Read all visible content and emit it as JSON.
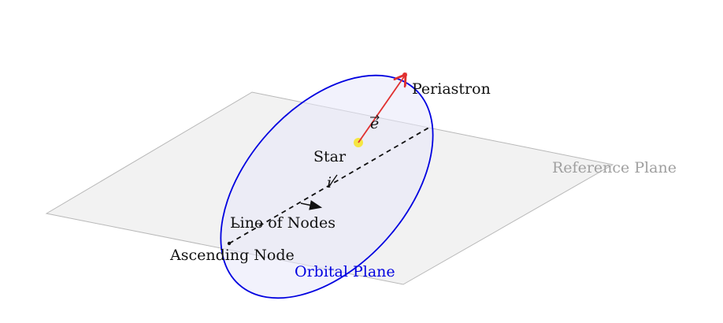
{
  "labels": {
    "periastron": "Periastron",
    "eccentricity_vector": "e",
    "star": "Star",
    "inclination": "i",
    "reference_plane": "Reference Plane",
    "line_of_nodes": "Line of Nodes",
    "ascending_node": "Ascending Node",
    "orbital_plane": "Orbital Plane"
  },
  "colors": {
    "reference_plane_fill": "#f2f2f2",
    "reference_plane_stroke": "#b8b8b8",
    "reference_plane_text": "#a0a0a0",
    "orbit_stroke": "#0000e0",
    "orbit_fill": "#e8e8fa",
    "orbital_plane_text": "#0000e0",
    "eccentricity_vector": "#e03030",
    "star": "#f5e642",
    "text": "#111111"
  }
}
